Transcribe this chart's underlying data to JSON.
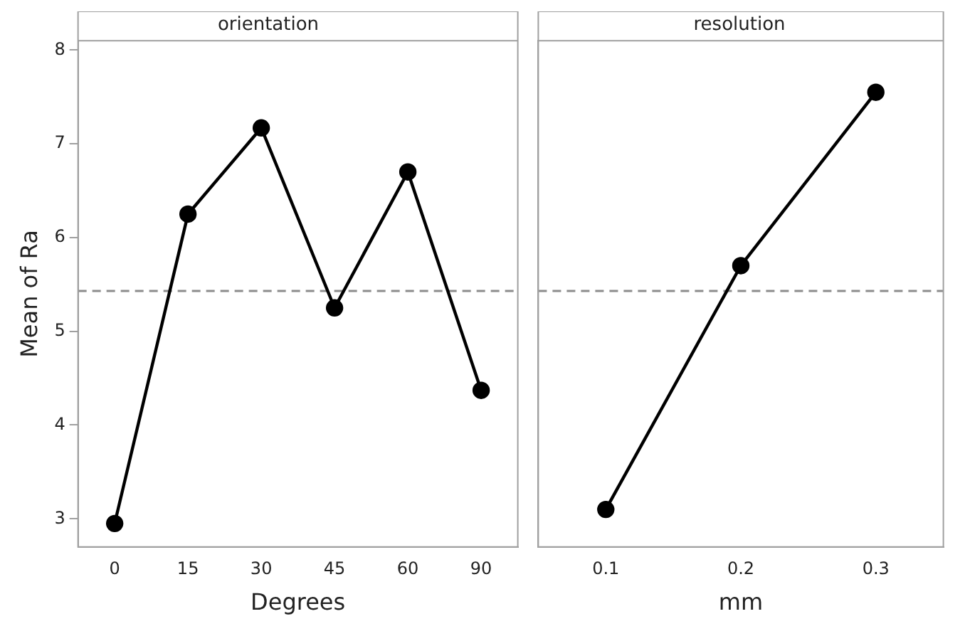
{
  "chart_data": [
    {
      "type": "line",
      "title": "orientation",
      "xlabel": "Degrees",
      "ylabel": "Mean of Ra",
      "categories": [
        "0",
        "15",
        "30",
        "45",
        "60",
        "90"
      ],
      "series": [
        {
          "color": "#000000",
          "values": [
            2.95,
            6.25,
            7.17,
            5.25,
            6.7,
            4.37
          ]
        }
      ],
      "ylim": [
        2.7,
        8.1
      ],
      "yticks": [
        3,
        4,
        5,
        6,
        7,
        8
      ],
      "ref_lines": [
        {
          "axis": "y",
          "value": 5.43,
          "color": "#8c8c8c",
          "line_style": "dashed"
        }
      ],
      "marker": "circle",
      "line_style": "solid",
      "grid": false,
      "legend": false
    },
    {
      "type": "line",
      "title": "resolution",
      "xlabel": "mm",
      "categories": [
        "0.1",
        "0.2",
        "0.3"
      ],
      "series": [
        {
          "color": "#000000",
          "values": [
            3.1,
            5.7,
            7.55
          ]
        }
      ],
      "ylim": [
        2.7,
        8.1
      ],
      "tick_labels": "x",
      "ref_lines": [
        {
          "axis": "y",
          "value": 5.43,
          "color": "#8c8c8c",
          "line_style": "dashed"
        }
      ],
      "marker": "circle",
      "line_style": "solid",
      "grid": false,
      "legend": false
    }
  ]
}
